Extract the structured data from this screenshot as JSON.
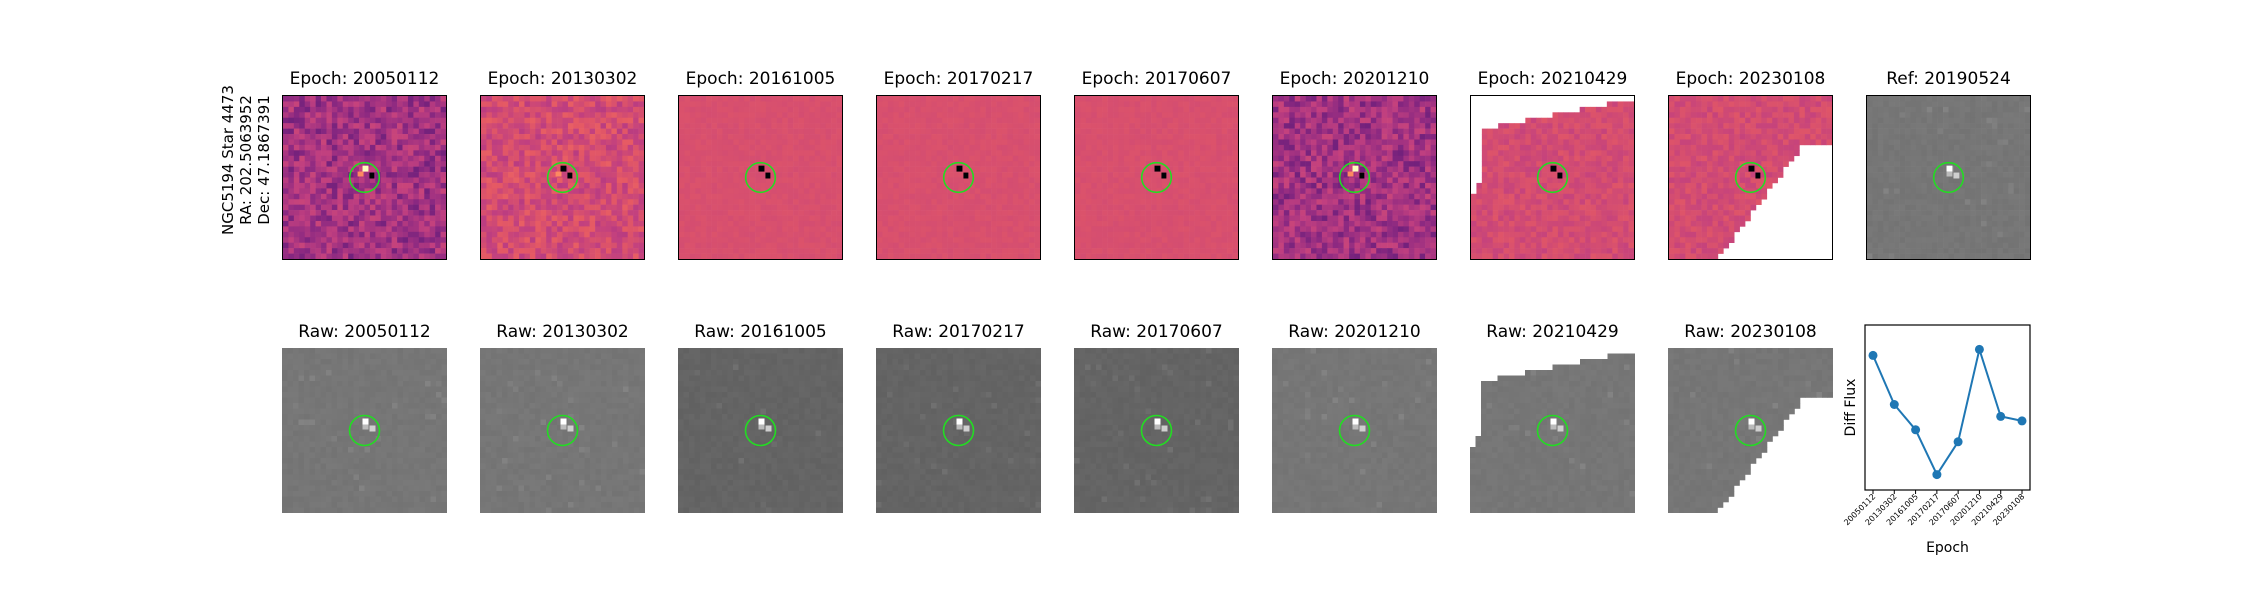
{
  "star_label": {
    "line1": "NGC5194 Star 4473",
    "line2": "RA: 202.5063952",
    "line3": "Dec: 47.1867391"
  },
  "top_row": [
    {
      "title": "Epoch: 20050112",
      "style": "diff-noisy"
    },
    {
      "title": "Epoch: 20130302",
      "style": "diff-noisy-light"
    },
    {
      "title": "Epoch: 20161005",
      "style": "diff-smooth"
    },
    {
      "title": "Epoch: 20170217",
      "style": "diff-smooth"
    },
    {
      "title": "Epoch: 20170607",
      "style": "diff-smooth"
    },
    {
      "title": "Epoch: 20201210",
      "style": "diff-noisy"
    },
    {
      "title": "Epoch: 20210429",
      "style": "diff-masked-topleft"
    },
    {
      "title": "Epoch: 20230108",
      "style": "diff-masked-bottomright"
    },
    {
      "title": "Ref: 20190524",
      "style": "ref"
    }
  ],
  "bottom_row": [
    {
      "title": "Raw: 20050112",
      "style": "raw"
    },
    {
      "title": "Raw: 20130302",
      "style": "raw"
    },
    {
      "title": "Raw: 20161005",
      "style": "raw-dark"
    },
    {
      "title": "Raw: 20170217",
      "style": "raw-dark"
    },
    {
      "title": "Raw: 20170607",
      "style": "raw-dark"
    },
    {
      "title": "Raw: 20201210",
      "style": "raw"
    },
    {
      "title": "Raw: 20210429",
      "style": "raw-masked-topleft"
    },
    {
      "title": "Raw: 20230108",
      "style": "raw-masked-bottomright"
    }
  ],
  "colors": {
    "circle": "#22dd22",
    "line": "#1f77b4",
    "diff_base": "#c03f80",
    "raw_base": "#737373"
  },
  "chart_data": {
    "type": "line",
    "title": "",
    "xlabel": "Epoch",
    "ylabel": "Diff Flux",
    "categories": [
      "20050112",
      "20130302",
      "20161005",
      "20170217",
      "20170607",
      "20201210",
      "20210429",
      "20230108"
    ],
    "values": [
      0.85,
      0.52,
      0.35,
      0.05,
      0.27,
      0.89,
      0.44,
      0.41
    ],
    "ylim": [
      0,
      1
    ],
    "yticks_visible": false,
    "grid": false,
    "legend": "none"
  }
}
